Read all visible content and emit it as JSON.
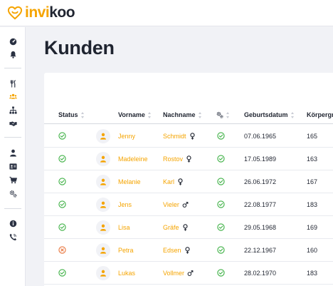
{
  "app": {
    "logo_part1": "invi",
    "logo_part2": "koo"
  },
  "page": {
    "title": "Kunden"
  },
  "sidebar": {
    "groups": [
      [
        "gauge-icon",
        "bell-icon"
      ],
      [
        "cutlery-icon",
        "users-icon",
        "org-chart-icon",
        "handshake-icon"
      ],
      [
        "user-icon",
        "id-card-icon",
        "cart-icon",
        "cogs-icon"
      ],
      [
        "info-icon",
        "phone-icon"
      ]
    ],
    "active": "users-icon"
  },
  "table": {
    "columns": {
      "status": "Status",
      "vorname": "Vorname",
      "nachname": "Nachname",
      "settings_icon": "cogs-icon",
      "geburtsdatum": "Geburtsdatum",
      "koerpergroesse": "Körpergr"
    },
    "rows": [
      {
        "status": "active",
        "vorname": "Jenny",
        "nachname": "Schmidt",
        "gender": "female",
        "settings": "check",
        "geburtsdatum": "07.06.1965",
        "groesse": "165"
      },
      {
        "status": "active",
        "vorname": "Madeleine",
        "nachname": "Rostov",
        "gender": "female",
        "settings": "check",
        "geburtsdatum": "17.05.1989",
        "groesse": "163"
      },
      {
        "status": "active",
        "vorname": "Melanie",
        "nachname": "Karl",
        "gender": "female",
        "settings": "check",
        "geburtsdatum": "26.06.1972",
        "groesse": "167"
      },
      {
        "status": "active",
        "vorname": "Jens",
        "nachname": "Vieler",
        "gender": "male",
        "settings": "check",
        "geburtsdatum": "22.08.1977",
        "groesse": "183"
      },
      {
        "status": "active",
        "vorname": "Lisa",
        "nachname": "Gräfe",
        "gender": "female",
        "settings": "check",
        "geburtsdatum": "29.05.1968",
        "groesse": "169"
      },
      {
        "status": "inactive",
        "vorname": "Petra",
        "nachname": "Edsen",
        "gender": "female",
        "settings": "check",
        "geburtsdatum": "22.12.1967",
        "groesse": "160"
      },
      {
        "status": "active",
        "vorname": "Lukas",
        "nachname": "Vollmer",
        "gender": "male",
        "settings": "check",
        "geburtsdatum": "28.02.1970",
        "groesse": "183"
      }
    ]
  },
  "colors": {
    "accent": "#f5a400",
    "active": "#3cb043",
    "inactive": "#e8743b",
    "text": "#1f2430"
  }
}
